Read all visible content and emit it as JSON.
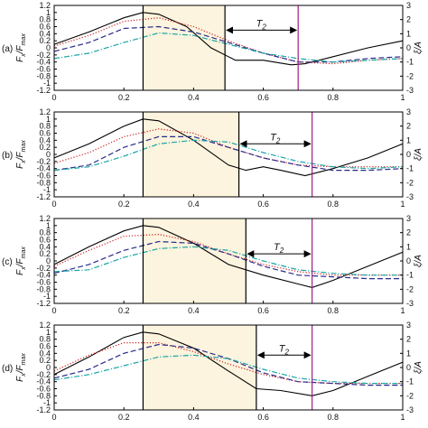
{
  "figure": {
    "y_label_left": "F",
    "y_label_left_sub1": "x",
    "y_label_left_mid": "/F",
    "y_label_left_sub2": "max",
    "y_label_right": "ξ/A"
  },
  "chart_data": [
    {
      "type": "line",
      "panel_label": "(a)",
      "xlim": [
        0,
        1
      ],
      "ylim": [
        -1.2,
        1.2
      ],
      "y2lim": [
        -3,
        3
      ],
      "x_ticks": [
        "0",
        "0.2",
        "0.4",
        "0.6",
        "0.8",
        "1"
      ],
      "y_ticks": [
        "1.2",
        "1",
        "0.8",
        "0.6",
        "0.4",
        "0.2",
        "0",
        "-0.2",
        "-0.4",
        "-0.6",
        "-0.8",
        "-1",
        "-1.2"
      ],
      "y2_ticks": [
        "3",
        "2",
        "1",
        "0",
        "-1",
        "-2",
        "-3"
      ],
      "shaded_interval": [
        0.255,
        0.49
      ],
      "vertical_lines": [
        {
          "x": 0.255,
          "color": "#000000"
        },
        {
          "x": 0.49,
          "color": "#000000"
        },
        {
          "x": 0.7,
          "color": "#a01e8c"
        }
      ],
      "annotation": {
        "label": "T",
        "sub": "2",
        "x_from": 0.49,
        "x_to": 0.7,
        "y": 0.5
      },
      "series": [
        {
          "style": "solid",
          "color": "#000000",
          "x": [
            0,
            0.1,
            0.2,
            0.255,
            0.3,
            0.38,
            0.45,
            0.52,
            0.6,
            0.68,
            0.72,
            0.8,
            0.9,
            1.0
          ],
          "y": [
            0.1,
            0.45,
            0.85,
            1.0,
            0.95,
            0.6,
            0.0,
            -0.35,
            -0.35,
            -0.48,
            -0.45,
            -0.25,
            0.0,
            0.2
          ]
        },
        {
          "style": "dotted",
          "color": "#cc2020",
          "x": [
            0,
            0.1,
            0.2,
            0.3,
            0.4,
            0.5,
            0.6,
            0.7,
            0.8,
            0.9,
            1.0
          ],
          "y": [
            0.05,
            0.35,
            0.75,
            0.85,
            0.6,
            0.2,
            -0.15,
            -0.4,
            -0.45,
            -0.35,
            -0.3
          ]
        },
        {
          "style": "dashed",
          "color": "#2a2a8a",
          "x": [
            0,
            0.1,
            0.2,
            0.3,
            0.4,
            0.5,
            0.6,
            0.7,
            0.8,
            0.9,
            1.0
          ],
          "y": [
            -0.1,
            0.15,
            0.55,
            0.6,
            0.45,
            0.15,
            -0.15,
            -0.4,
            -0.4,
            -0.3,
            -0.25
          ]
        },
        {
          "style": "dashdot",
          "color": "#1aa5a5",
          "x": [
            0,
            0.1,
            0.2,
            0.3,
            0.4,
            0.5,
            0.6,
            0.7,
            0.8,
            0.9,
            1.0
          ],
          "y": [
            -0.3,
            -0.15,
            0.15,
            0.42,
            0.35,
            0.1,
            -0.15,
            -0.3,
            -0.4,
            -0.35,
            -0.3
          ]
        }
      ]
    },
    {
      "type": "line",
      "panel_label": "(b)",
      "xlim": [
        0,
        1
      ],
      "ylim": [
        -1.2,
        1.2
      ],
      "y2lim": [
        -3,
        3
      ],
      "x_ticks": [
        "0",
        "0.2",
        "0.4",
        "0.6",
        "0.8",
        "1"
      ],
      "y_ticks": [
        "1.2",
        "1",
        "0.8",
        "0.6",
        "0.4",
        "0.2",
        "0",
        "-0.2",
        "-0.4",
        "-0.6",
        "-0.8",
        "-1",
        "-1.2"
      ],
      "y2_ticks": [
        "3",
        "2",
        "1",
        "0",
        "-1",
        "-2",
        "-3"
      ],
      "shaded_interval": [
        0.255,
        0.53
      ],
      "vertical_lines": [
        {
          "x": 0.255,
          "color": "#000000"
        },
        {
          "x": 0.53,
          "color": "#000000"
        },
        {
          "x": 0.74,
          "color": "#a01e8c"
        }
      ],
      "annotation": {
        "label": "T",
        "sub": "2",
        "x_from": 0.53,
        "x_to": 0.74,
        "y": 0.3
      },
      "series": [
        {
          "style": "solid",
          "color": "#000000",
          "x": [
            0,
            0.1,
            0.2,
            0.255,
            0.3,
            0.4,
            0.5,
            0.55,
            0.6,
            0.65,
            0.72,
            0.8,
            0.9,
            1.0
          ],
          "y": [
            -0.1,
            0.3,
            0.8,
            1.0,
            0.95,
            0.4,
            -0.3,
            -0.45,
            -0.35,
            -0.45,
            -0.6,
            -0.4,
            -0.1,
            0.3
          ]
        },
        {
          "style": "dotted",
          "color": "#cc2020",
          "x": [
            0,
            0.1,
            0.2,
            0.3,
            0.4,
            0.5,
            0.6,
            0.7,
            0.8,
            0.9,
            1.0
          ],
          "y": [
            -0.25,
            0.05,
            0.5,
            0.72,
            0.6,
            0.2,
            -0.1,
            -0.3,
            -0.35,
            -0.35,
            -0.35
          ]
        },
        {
          "style": "dashed",
          "color": "#2a2a8a",
          "x": [
            0,
            0.1,
            0.2,
            0.3,
            0.4,
            0.5,
            0.6,
            0.7,
            0.8,
            0.9,
            1.0
          ],
          "y": [
            -0.45,
            -0.3,
            0.2,
            0.5,
            0.5,
            0.2,
            -0.1,
            -0.3,
            -0.45,
            -0.45,
            -0.4
          ]
        },
        {
          "style": "dashdot",
          "color": "#1aa5a5",
          "x": [
            0,
            0.1,
            0.2,
            0.3,
            0.4,
            0.5,
            0.6,
            0.7,
            0.8,
            0.9,
            1.0
          ],
          "y": [
            -0.45,
            -0.35,
            -0.05,
            0.3,
            0.4,
            0.35,
            0.05,
            -0.2,
            -0.35,
            -0.4,
            -0.35
          ]
        }
      ]
    },
    {
      "type": "line",
      "panel_label": "(c)",
      "xlim": [
        0,
        1
      ],
      "ylim": [
        -1.2,
        1.2
      ],
      "y2lim": [
        -3,
        3
      ],
      "x_ticks": [
        "0",
        "0.2",
        "0.4",
        "0.6",
        "0.8",
        "1"
      ],
      "y_ticks": [
        "1.2",
        "1",
        "0.8",
        "0.6",
        "0.4",
        "0.2",
        "0",
        "-0.2",
        "-0.4",
        "-0.6",
        "-0.8",
        "-1",
        "-1.2"
      ],
      "y2_ticks": [
        "3",
        "2",
        "1",
        "0",
        "-1",
        "-2",
        "-3"
      ],
      "shaded_interval": [
        0.255,
        0.55
      ],
      "vertical_lines": [
        {
          "x": 0.255,
          "color": "#000000"
        },
        {
          "x": 0.55,
          "color": "#000000"
        },
        {
          "x": 0.74,
          "color": "#a01e8c"
        }
      ],
      "annotation": {
        "label": "T",
        "sub": "2",
        "x_from": 0.55,
        "x_to": 0.74,
        "y": 0.2
      },
      "series": [
        {
          "style": "solid",
          "color": "#000000",
          "x": [
            0,
            0.1,
            0.2,
            0.255,
            0.3,
            0.4,
            0.5,
            0.6,
            0.7,
            0.74,
            0.8,
            0.9,
            1.0
          ],
          "y": [
            -0.1,
            0.4,
            0.85,
            1.0,
            0.95,
            0.5,
            -0.1,
            -0.4,
            -0.65,
            -0.75,
            -0.55,
            -0.15,
            0.25
          ]
        },
        {
          "style": "dotted",
          "color": "#cc2020",
          "x": [
            0,
            0.1,
            0.2,
            0.3,
            0.4,
            0.5,
            0.6,
            0.7,
            0.8,
            0.9,
            1.0
          ],
          "y": [
            -0.15,
            0.3,
            0.7,
            0.75,
            0.55,
            0.2,
            -0.1,
            -0.3,
            -0.4,
            -0.4,
            -0.4
          ]
        },
        {
          "style": "dashed",
          "color": "#2a2a8a",
          "x": [
            0,
            0.1,
            0.2,
            0.3,
            0.4,
            0.5,
            0.6,
            0.7,
            0.8,
            0.9,
            1.0
          ],
          "y": [
            -0.35,
            -0.1,
            0.3,
            0.55,
            0.5,
            0.2,
            -0.15,
            -0.4,
            -0.45,
            -0.5,
            -0.5
          ]
        },
        {
          "style": "dashdot",
          "color": "#1aa5a5",
          "x": [
            0,
            0.1,
            0.2,
            0.3,
            0.4,
            0.5,
            0.6,
            0.7,
            0.8,
            0.9,
            1.0
          ],
          "y": [
            -0.3,
            -0.25,
            0.1,
            0.35,
            0.4,
            0.3,
            0.0,
            -0.25,
            -0.35,
            -0.4,
            -0.4
          ]
        }
      ]
    },
    {
      "type": "line",
      "panel_label": "(d)",
      "xlim": [
        0,
        1
      ],
      "ylim": [
        -1.2,
        1.2
      ],
      "y2lim": [
        -3,
        3
      ],
      "x_ticks": [
        "0",
        "0.2",
        "0.4",
        "0.6",
        "0.8",
        "1"
      ],
      "y_ticks": [
        "1.2",
        "1",
        "0.8",
        "0.6",
        "0.4",
        "0.2",
        "0",
        "-0.2",
        "-0.4",
        "-0.6",
        "-0.8",
        "-1",
        "-1.2"
      ],
      "y2_ticks": [
        "3",
        "2",
        "1",
        "0",
        "-1",
        "-2",
        "-3"
      ],
      "shaded_interval": [
        0.255,
        0.58
      ],
      "vertical_lines": [
        {
          "x": 0.255,
          "color": "#000000"
        },
        {
          "x": 0.58,
          "color": "#000000"
        },
        {
          "x": 0.74,
          "color": "#a01e8c"
        }
      ],
      "annotation": {
        "label": "T",
        "sub": "2",
        "x_from": 0.58,
        "x_to": 0.74,
        "y": 0.35
      },
      "series": [
        {
          "style": "solid",
          "color": "#000000",
          "x": [
            0,
            0.1,
            0.2,
            0.255,
            0.3,
            0.4,
            0.5,
            0.58,
            0.65,
            0.74,
            0.8,
            0.9,
            1.0
          ],
          "y": [
            -0.2,
            0.3,
            0.85,
            1.0,
            0.95,
            0.55,
            -0.1,
            -0.6,
            -0.65,
            -0.8,
            -0.65,
            -0.25,
            0.15
          ]
        },
        {
          "style": "dotted",
          "color": "#cc2020",
          "x": [
            0,
            0.1,
            0.2,
            0.3,
            0.4,
            0.5,
            0.6,
            0.7,
            0.8,
            0.9,
            1.0
          ],
          "y": [
            -0.1,
            0.35,
            0.7,
            0.7,
            0.45,
            0.1,
            -0.2,
            -0.4,
            -0.45,
            -0.45,
            -0.45
          ]
        },
        {
          "style": "dashed",
          "color": "#2a2a8a",
          "x": [
            0,
            0.1,
            0.2,
            0.3,
            0.4,
            0.5,
            0.6,
            0.7,
            0.8,
            0.9,
            1.0
          ],
          "y": [
            -0.3,
            -0.05,
            0.4,
            0.65,
            0.55,
            0.25,
            -0.15,
            -0.4,
            -0.45,
            -0.5,
            -0.5
          ]
        },
        {
          "style": "dashdot",
          "color": "#1aa5a5",
          "x": [
            0,
            0.1,
            0.2,
            0.3,
            0.4,
            0.5,
            0.6,
            0.7,
            0.8,
            0.9,
            1.0
          ],
          "y": [
            -0.35,
            -0.2,
            0.05,
            0.3,
            0.35,
            0.25,
            -0.05,
            -0.3,
            -0.4,
            -0.45,
            -0.45
          ]
        }
      ]
    }
  ]
}
